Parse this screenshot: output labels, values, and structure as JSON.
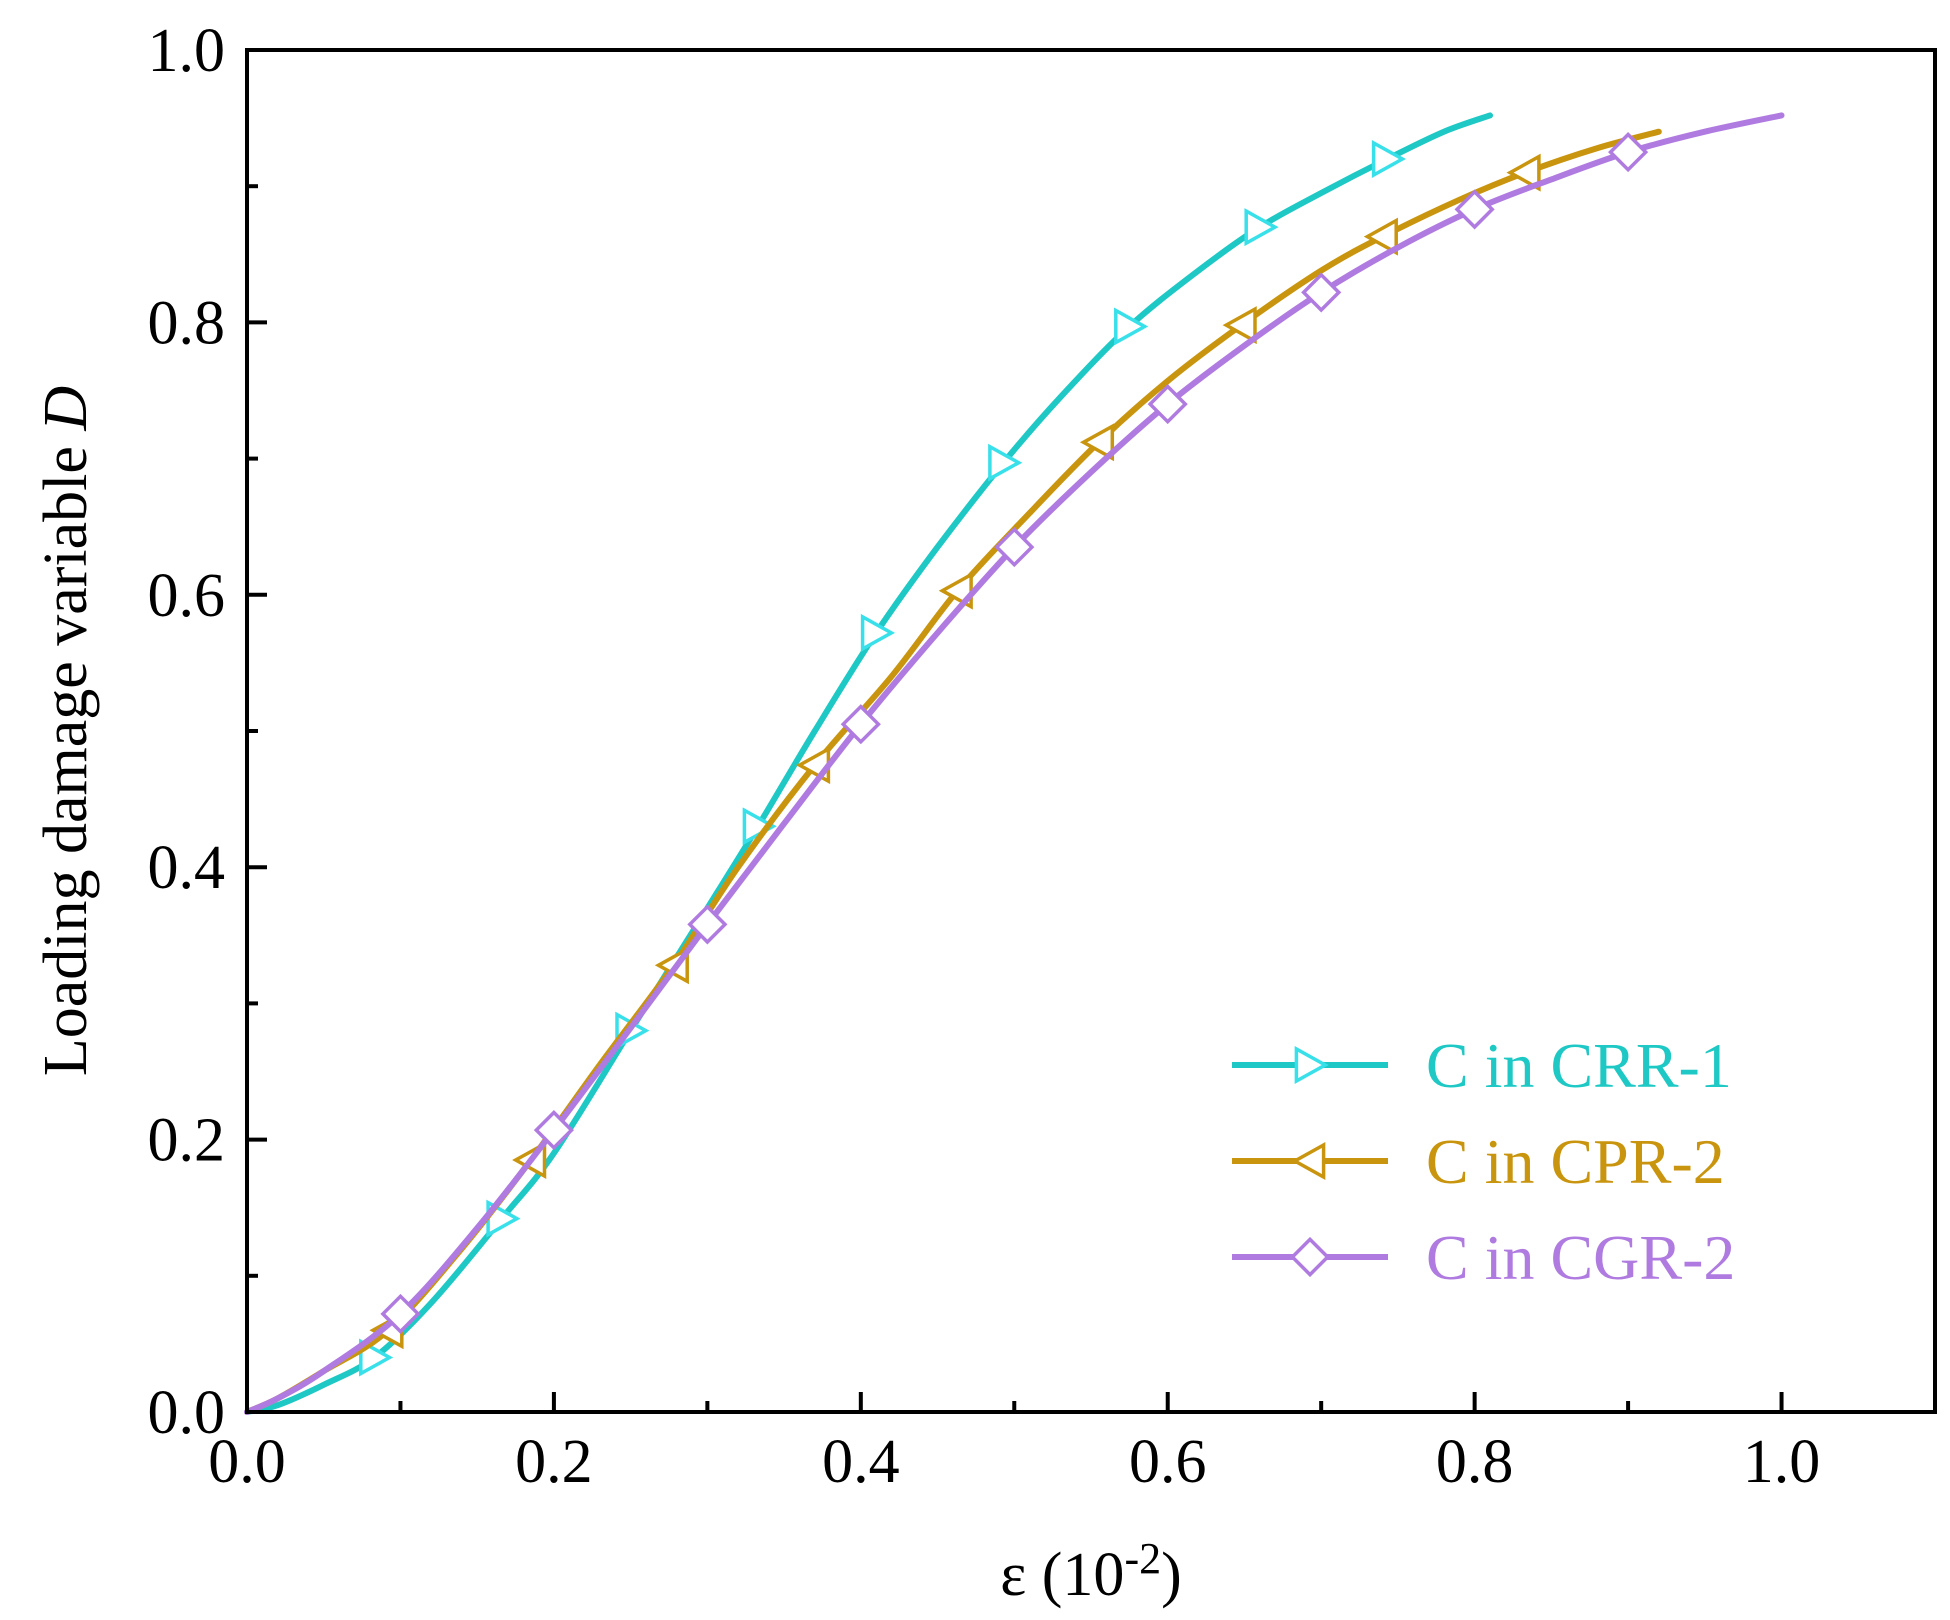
{
  "chart_data": {
    "type": "line",
    "title": "",
    "xlabel": "ε (10⁻²)",
    "ylabel": "Loading damage variable D",
    "xlabel_parts": {
      "base": "ε (10",
      "exp": "-2",
      "close": ")"
    },
    "ylabel_parts": {
      "text": "Loading damage variable ",
      "italic": "D"
    },
    "xlim": [
      0.0,
      1.1
    ],
    "ylim": [
      0.0,
      1.0
    ],
    "x_ticks": [
      "0.0",
      "0.2",
      "0.4",
      "0.6",
      "0.8",
      "1.0"
    ],
    "y_ticks": [
      "0.0",
      "0.2",
      "0.4",
      "0.6",
      "0.8",
      "1.0"
    ],
    "legend_position": "bottom-right",
    "series": [
      {
        "name": "C in CRR-1",
        "color": "#1ec8c4",
        "marker_color": "#38e0ea",
        "marker": "triangle-right",
        "x": [
          0.0,
          0.02,
          0.05,
          0.083,
          0.12,
          0.166,
          0.2,
          0.25,
          0.3,
          0.333,
          0.37,
          0.41,
          0.45,
          0.493,
          0.53,
          0.575,
          0.62,
          0.66,
          0.7,
          0.743,
          0.78,
          0.81
        ],
        "y": [
          0.0,
          0.005,
          0.02,
          0.04,
          0.08,
          0.142,
          0.19,
          0.28,
          0.37,
          0.43,
          0.5,
          0.572,
          0.635,
          0.697,
          0.745,
          0.797,
          0.838,
          0.87,
          0.895,
          0.92,
          0.94,
          0.952
        ],
        "marker_x": [
          0.083,
          0.166,
          0.25,
          0.333,
          0.41,
          0.493,
          0.575,
          0.66,
          0.743
        ],
        "marker_y": [
          0.04,
          0.142,
          0.28,
          0.43,
          0.572,
          0.697,
          0.797,
          0.87,
          0.92
        ]
      },
      {
        "name": "C in CPR-2",
        "color": "#c9950e",
        "marker_color": "#c9950e",
        "marker": "triangle-left",
        "x": [
          0.0,
          0.02,
          0.05,
          0.092,
          0.14,
          0.185,
          0.23,
          0.278,
          0.32,
          0.37,
          0.42,
          0.463,
          0.51,
          0.555,
          0.6,
          0.648,
          0.7,
          0.74,
          0.79,
          0.833,
          0.88,
          0.92
        ],
        "y": [
          0.0,
          0.01,
          0.03,
          0.06,
          0.12,
          0.185,
          0.255,
          0.328,
          0.4,
          0.475,
          0.54,
          0.603,
          0.66,
          0.712,
          0.757,
          0.798,
          0.838,
          0.863,
          0.89,
          0.91,
          0.928,
          0.94
        ],
        "marker_x": [
          0.092,
          0.185,
          0.278,
          0.37,
          0.463,
          0.555,
          0.648,
          0.74,
          0.833
        ],
        "marker_y": [
          0.06,
          0.185,
          0.328,
          0.475,
          0.603,
          0.712,
          0.798,
          0.863,
          0.91
        ]
      },
      {
        "name": "C in CGR-2",
        "color": "#b07be0",
        "marker_color": "#b07be0",
        "marker": "diamond",
        "x": [
          0.0,
          0.02,
          0.05,
          0.1,
          0.15,
          0.2,
          0.25,
          0.3,
          0.35,
          0.4,
          0.45,
          0.5,
          0.55,
          0.6,
          0.65,
          0.7,
          0.75,
          0.8,
          0.85,
          0.9,
          0.95,
          1.0
        ],
        "y": [
          0.0,
          0.01,
          0.03,
          0.072,
          0.135,
          0.207,
          0.282,
          0.358,
          0.432,
          0.505,
          0.572,
          0.635,
          0.69,
          0.74,
          0.783,
          0.822,
          0.855,
          0.883,
          0.905,
          0.925,
          0.94,
          0.952
        ],
        "marker_x": [
          0.1,
          0.2,
          0.3,
          0.4,
          0.5,
          0.6,
          0.7,
          0.8,
          0.9
        ],
        "marker_y": [
          0.072,
          0.207,
          0.358,
          0.505,
          0.635,
          0.74,
          0.822,
          0.883,
          0.925
        ]
      }
    ]
  }
}
